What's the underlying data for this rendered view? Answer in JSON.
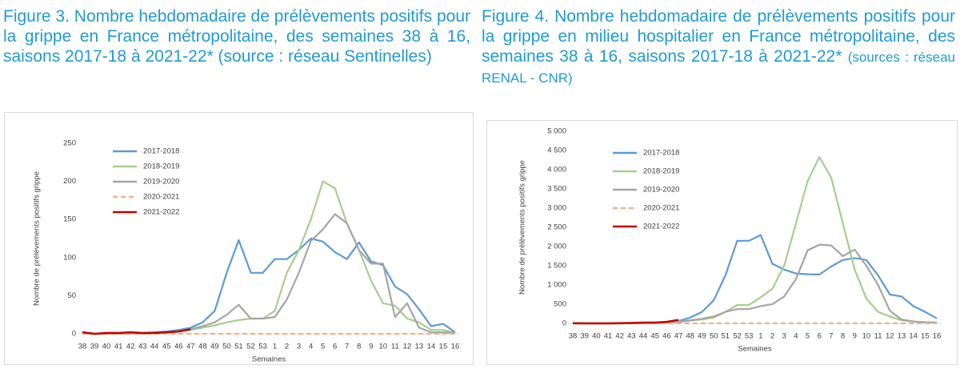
{
  "chart_data": [
    {
      "type": "line",
      "title": "Figure 3. Nombre hebdomadaire de prélèvements positifs pour la grippe en France métropolitaine, des semaines 38 à 16, saisons 2017-18 à 2021-22* (source : réseau Sentinelles)",
      "ylabel": "Nombre de prélèvements positifs grippe",
      "xlabel": "Semaines",
      "categories": [
        "38",
        "39",
        "40",
        "41",
        "42",
        "43",
        "44",
        "45",
        "46",
        "47",
        "48",
        "49",
        "50",
        "51",
        "52",
        "53",
        "1",
        "2",
        "3",
        "4",
        "5",
        "6",
        "7",
        "8",
        "9",
        "10",
        "11",
        "12",
        "13",
        "14",
        "15",
        "16"
      ],
      "ylim": [
        0,
        250
      ],
      "yticks": [
        0,
        50,
        100,
        150,
        200,
        250
      ],
      "legend": "upper left",
      "series": [
        {
          "name": "2017-2018",
          "color": "#5b9bd5",
          "values": [
            2,
            0,
            1,
            1,
            1,
            1,
            2,
            3,
            5,
            8,
            15,
            30,
            80,
            123,
            80,
            80,
            98,
            98,
            110,
            125,
            121,
            107,
            98,
            120,
            95,
            90,
            62,
            52,
            32,
            10,
            13,
            2
          ]
        },
        {
          "name": "2018-2019",
          "color": "#a3d08b",
          "values": [
            1,
            0,
            0,
            0,
            0,
            0,
            1,
            2,
            3,
            5,
            8,
            11,
            15,
            18,
            20,
            20,
            30,
            80,
            110,
            150,
            200,
            191,
            145,
            110,
            70,
            40,
            37,
            20,
            15,
            5,
            5,
            1
          ]
        },
        {
          "name": "2019-2020",
          "color": "#a5a5a5",
          "values": [
            1,
            0,
            0,
            0,
            0,
            0,
            1,
            2,
            3,
            6,
            10,
            15,
            25,
            38,
            20,
            20,
            22,
            45,
            80,
            122,
            137,
            157,
            145,
            110,
            92,
            92,
            22,
            40,
            8,
            2,
            2,
            1
          ]
        },
        {
          "name": "2020-2021",
          "color": "#f4b183",
          "dashed": true,
          "values": [
            0,
            0,
            0,
            0,
            0,
            0,
            0,
            0,
            0,
            0,
            0,
            0,
            0,
            0,
            0,
            0,
            0,
            0,
            0,
            0,
            0,
            0,
            0,
            0,
            0,
            0,
            0,
            0,
            0,
            0,
            0,
            0
          ]
        },
        {
          "name": "2021-2022",
          "color": "#c00000",
          "values": [
            2,
            0,
            1,
            1,
            2,
            1,
            1,
            2,
            3,
            6,
            null,
            null,
            null,
            null,
            null,
            null,
            null,
            null,
            null,
            null,
            null,
            null,
            null,
            null,
            null,
            null,
            null,
            null,
            null,
            null,
            null,
            null
          ]
        }
      ]
    },
    {
      "type": "line",
      "title": "Figure 4. Nombre hebdomadaire de prélèvements positifs pour la grippe en milieu hospitalier en France métropolitaine, des semaines 38 à 16, saisons 2017-18 à 2021-22*",
      "source": "(sources : réseau RENAL - CNR)",
      "ylabel": "Nombre de prélèvements positifs grippe",
      "xlabel": "Semaines",
      "categories": [
        "38",
        "39",
        "40",
        "41",
        "42",
        "43",
        "44",
        "45",
        "46",
        "47",
        "48",
        "49",
        "50",
        "51",
        "52",
        "53",
        "1",
        "2",
        "3",
        "4",
        "5",
        "6",
        "7",
        "8",
        "9",
        "10",
        "11",
        "12",
        "13",
        "14",
        "15",
        "16"
      ],
      "ylim": [
        0,
        5000
      ],
      "yticks": [
        0,
        500,
        {
          "value": 1000,
          "label": "1 000"
        },
        {
          "value": 1500,
          "label": "1 500"
        },
        {
          "value": 2000,
          "label": "2 000"
        },
        {
          "value": 2500,
          "label": "2 500"
        },
        {
          "value": 3000,
          "label": "3 000"
        },
        {
          "value": 3500,
          "label": "3 500"
        },
        {
          "value": 4000,
          "label": "4 000"
        },
        {
          "value": 4500,
          "label": "4 500"
        },
        {
          "value": 5000,
          "label": "5 000"
        }
      ],
      "legend": "upper left",
      "series": [
        {
          "name": "2017-2018",
          "color": "#5b9bd5",
          "values": [
            0,
            0,
            0,
            0,
            0,
            5,
            5,
            10,
            30,
            60,
            150,
            300,
            600,
            1250,
            2150,
            2150,
            2300,
            1550,
            1400,
            1300,
            1280,
            1270,
            1480,
            1650,
            1700,
            1650,
            1250,
            750,
            700,
            450,
            300,
            130
          ]
        },
        {
          "name": "2018-2019",
          "color": "#a3d08b",
          "values": [
            0,
            0,
            0,
            0,
            0,
            5,
            5,
            10,
            10,
            40,
            70,
            100,
            150,
            300,
            480,
            480,
            680,
            900,
            1500,
            2600,
            3700,
            4330,
            3800,
            2600,
            1400,
            650,
            300,
            180,
            80,
            50,
            30,
            20
          ]
        },
        {
          "name": "2019-2020",
          "color": "#a5a5a5",
          "values": [
            0,
            0,
            0,
            0,
            0,
            5,
            5,
            10,
            20,
            40,
            80,
            120,
            180,
            300,
            370,
            370,
            450,
            500,
            700,
            1150,
            1900,
            2050,
            2030,
            1750,
            1920,
            1500,
            1000,
            330,
            100,
            50,
            30,
            20
          ]
        },
        {
          "name": "2020-2021",
          "color": "#f4b183",
          "dashed": true,
          "values": [
            0,
            0,
            0,
            0,
            0,
            0,
            0,
            0,
            0,
            0,
            0,
            0,
            0,
            0,
            0,
            0,
            0,
            0,
            0,
            0,
            0,
            0,
            0,
            0,
            0,
            0,
            0,
            0,
            0,
            0,
            0,
            0
          ]
        },
        {
          "name": "2021-2022",
          "color": "#c00000",
          "values": [
            5,
            0,
            0,
            0,
            5,
            10,
            20,
            20,
            40,
            90,
            null,
            null,
            null,
            null,
            null,
            null,
            null,
            null,
            null,
            null,
            null,
            null,
            null,
            null,
            null,
            null,
            null,
            null,
            null,
            null,
            null,
            null
          ]
        }
      ]
    }
  ]
}
